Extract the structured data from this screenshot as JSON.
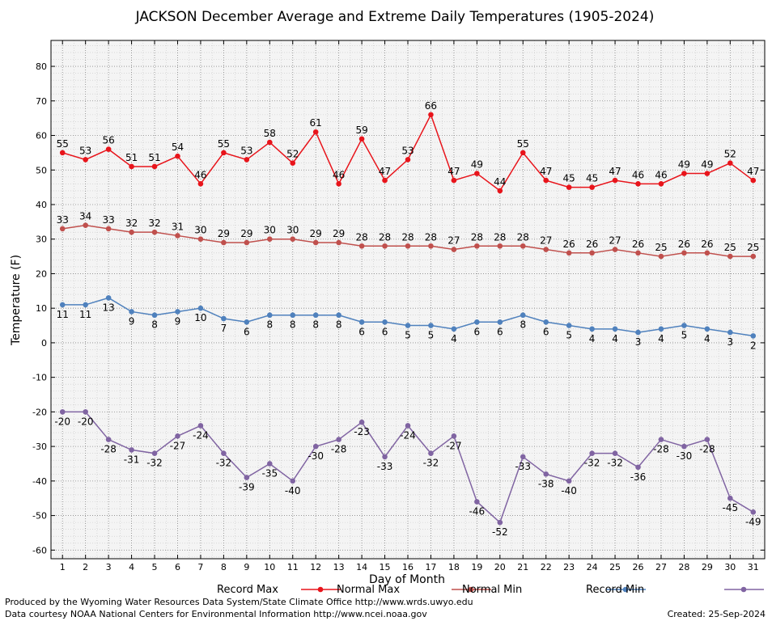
{
  "chart_data": {
    "type": "line",
    "title": "JACKSON December Average and Extreme Daily Temperatures (1905-2024)",
    "xlabel": "Day of Month",
    "ylabel": "Temperature (F)",
    "xlim": [
      1,
      31
    ],
    "ylim": [
      -60,
      80
    ],
    "yticks": [
      -60,
      -50,
      -40,
      -30,
      -20,
      -10,
      0,
      10,
      20,
      30,
      40,
      50,
      60,
      70,
      80
    ],
    "x": [
      1,
      2,
      3,
      4,
      5,
      6,
      7,
      8,
      9,
      10,
      11,
      12,
      13,
      14,
      15,
      16,
      17,
      18,
      19,
      20,
      21,
      22,
      23,
      24,
      25,
      26,
      27,
      28,
      29,
      30,
      31
    ],
    "grid": true,
    "legend": "bottom",
    "series": [
      {
        "name": "Record Max",
        "color": "#e8141b",
        "values": [
          55,
          53,
          56,
          51,
          51,
          54,
          46,
          55,
          53,
          58,
          52,
          61,
          46,
          59,
          47,
          53,
          66,
          47,
          49,
          44,
          55,
          47,
          45,
          45,
          47,
          46,
          46,
          49,
          49,
          52,
          47
        ]
      },
      {
        "name": "Normal Max",
        "color": "#c0504d",
        "values": [
          33,
          34,
          33,
          32,
          32,
          31,
          30,
          29,
          29,
          30,
          30,
          29,
          29,
          28,
          28,
          28,
          28,
          27,
          28,
          28,
          28,
          27,
          26,
          26,
          27,
          26,
          25,
          26,
          26,
          25,
          25
        ]
      },
      {
        "name": "Normal Min",
        "color": "#4f81bd",
        "values": [
          11,
          11,
          13,
          9,
          8,
          9,
          10,
          7,
          6,
          8,
          8,
          8,
          8,
          6,
          6,
          5,
          5,
          4,
          6,
          6,
          8,
          6,
          5,
          4,
          4,
          3,
          4,
          5,
          4,
          3,
          2
        ]
      },
      {
        "name": "Record Min",
        "color": "#8064a2",
        "values": [
          -20,
          -20,
          -28,
          -31,
          -32,
          -27,
          -24,
          -32,
          -39,
          -35,
          -40,
          -30,
          -28,
          -23,
          -33,
          -24,
          -32,
          -27,
          -46,
          -52,
          -33,
          -38,
          -40,
          -32,
          -32,
          -36,
          -28,
          -30,
          -28,
          -45,
          -49
        ]
      }
    ]
  },
  "footer": {
    "produced_by": "Produced by the Wyoming Water Resources Data System/State Climate Office http://www.wrds.uwyo.edu",
    "data_courtesy": "Data courtesy NOAA National Centers for Environmental Information http://www.ncei.noaa.gov",
    "created": "Created:  25-Sep-2024"
  }
}
